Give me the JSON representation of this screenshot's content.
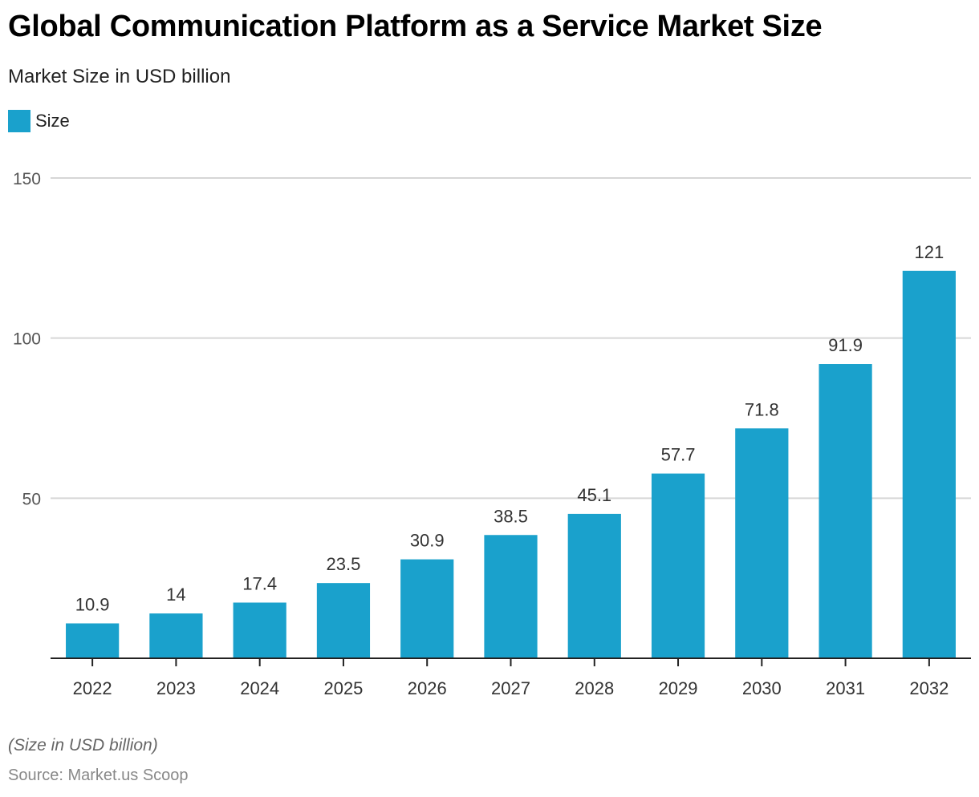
{
  "title": "Global Communication Platform as a Service Market Size",
  "subtitle": "Market Size in USD billion",
  "legend": {
    "label": "Size",
    "color": "#1aa1cc"
  },
  "footnote": "(Size in USD billion)",
  "source": "Source: Market.us Scoop",
  "chart_data": {
    "type": "bar",
    "title": "Global Communication Platform as a Service Market Size",
    "subtitle": "Market Size in USD billion",
    "xlabel": "",
    "ylabel": "",
    "categories": [
      "2022",
      "2023",
      "2024",
      "2025",
      "2026",
      "2027",
      "2028",
      "2029",
      "2030",
      "2031",
      "2032"
    ],
    "series": [
      {
        "name": "Size",
        "color": "#1aa1cc",
        "values": [
          10.9,
          14,
          17.4,
          23.5,
          30.9,
          38.5,
          45.1,
          57.7,
          71.8,
          91.9,
          121
        ]
      }
    ],
    "data_labels": [
      "10.9",
      "14",
      "17.4",
      "23.5",
      "30.9",
      "38.5",
      "45.1",
      "57.7",
      "71.8",
      "91.9",
      "121"
    ],
    "ylim": [
      0,
      150
    ],
    "yticks": [
      50,
      100,
      150
    ],
    "ytick_labels": [
      "50",
      "100",
      "150"
    ],
    "grid": true,
    "legend_position": "top-left"
  }
}
